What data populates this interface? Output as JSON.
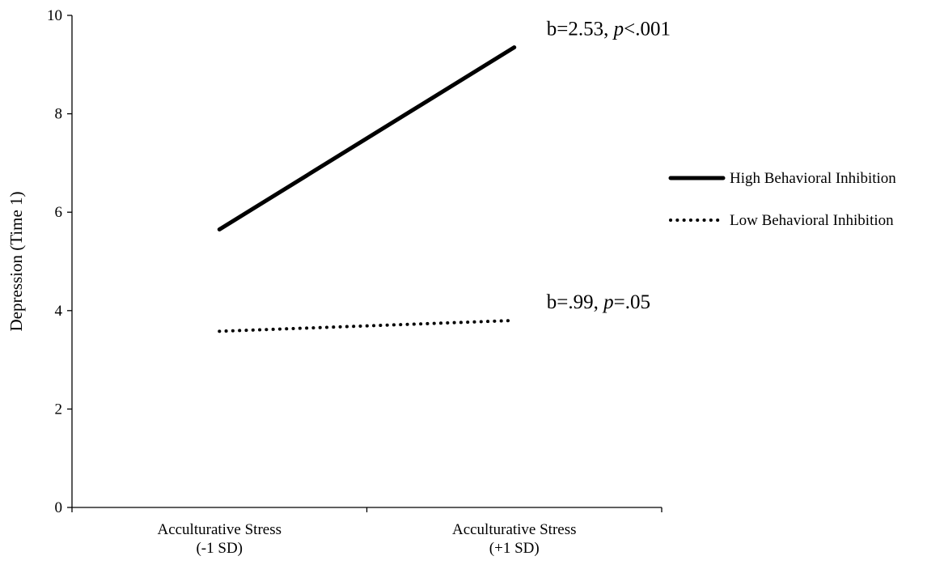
{
  "chart_data": {
    "type": "line",
    "title": "",
    "xlabel": "",
    "ylabel": "Depression (Time 1)",
    "ylim": [
      0,
      10
    ],
    "yticks": [
      0,
      2,
      4,
      6,
      8,
      10
    ],
    "grid": false,
    "legend_position": "right",
    "categories": [
      [
        "Acculturative Stress",
        "(-1 SD)"
      ],
      [
        "Acculturative Stress",
        "(+1 SD)"
      ]
    ],
    "series": [
      {
        "name": "High Behavioral Inhibition",
        "values": [
          5.65,
          9.35
        ],
        "line_style": "solid",
        "color": "#000000",
        "annotation": {
          "prefix": "b=2.53, ",
          "stat": "p",
          "suffix": "<.001"
        }
      },
      {
        "name": "Low Behavioral Inhibition",
        "values": [
          3.58,
          3.8
        ],
        "line_style": "dotted",
        "color": "#000000",
        "annotation": {
          "prefix": "b=.99, ",
          "stat": "p",
          "suffix": "=.05"
        }
      }
    ]
  }
}
